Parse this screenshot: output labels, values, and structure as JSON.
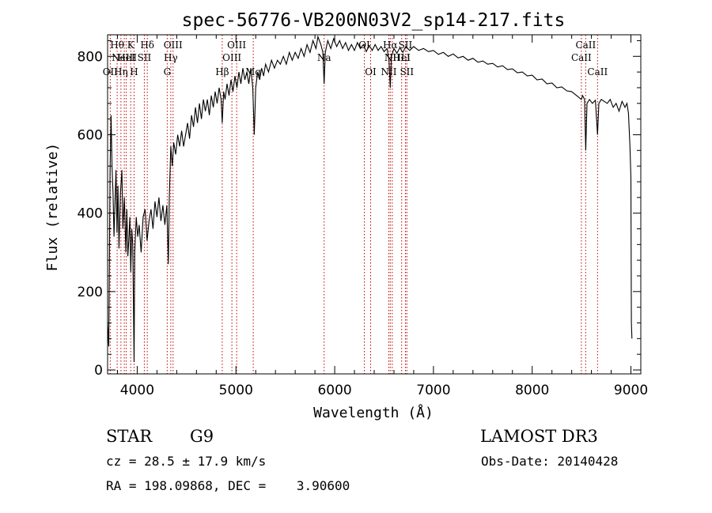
{
  "chart_data": {
    "type": "line",
    "title": "spec-56776-VB200N03V2_sp14-217.fits",
    "xlabel": "Wavelength (Å)",
    "ylabel": "Flux (relative)",
    "xlim": [
      3700,
      9100
    ],
    "ylim": [
      -10,
      855
    ],
    "xticks": [
      4000,
      5000,
      6000,
      7000,
      8000,
      9000
    ],
    "yticks": [
      0,
      200,
      400,
      600,
      800
    ],
    "grid": false,
    "spectrum_points": [
      [
        3700,
        120
      ],
      [
        3712,
        60
      ],
      [
        3725,
        500
      ],
      [
        3735,
        650
      ],
      [
        3745,
        520
      ],
      [
        3755,
        450
      ],
      [
        3765,
        340
      ],
      [
        3775,
        430
      ],
      [
        3785,
        510
      ],
      [
        3795,
        350
      ],
      [
        3805,
        470
      ],
      [
        3815,
        310
      ],
      [
        3830,
        450
      ],
      [
        3845,
        510
      ],
      [
        3855,
        360
      ],
      [
        3870,
        440
      ],
      [
        3885,
        300
      ],
      [
        3895,
        410
      ],
      [
        3905,
        290
      ],
      [
        3915,
        330
      ],
      [
        3925,
        390
      ],
      [
        3935,
        250
      ],
      [
        3945,
        360
      ],
      [
        3955,
        320
      ],
      [
        3968,
        20
      ],
      [
        3975,
        300
      ],
      [
        3990,
        390
      ],
      [
        4005,
        340
      ],
      [
        4020,
        370
      ],
      [
        4040,
        300
      ],
      [
        4060,
        390
      ],
      [
        4080,
        410
      ],
      [
        4100,
        330
      ],
      [
        4120,
        380
      ],
      [
        4140,
        410
      ],
      [
        4160,
        360
      ],
      [
        4180,
        430
      ],
      [
        4200,
        390
      ],
      [
        4220,
        440
      ],
      [
        4240,
        380
      ],
      [
        4260,
        420
      ],
      [
        4280,
        370
      ],
      [
        4300,
        420
      ],
      [
        4315,
        270
      ],
      [
        4325,
        440
      ],
      [
        4340,
        570
      ],
      [
        4355,
        520
      ],
      [
        4370,
        580
      ],
      [
        4390,
        550
      ],
      [
        4410,
        600
      ],
      [
        4430,
        570
      ],
      [
        4450,
        610
      ],
      [
        4470,
        570
      ],
      [
        4490,
        600
      ],
      [
        4510,
        630
      ],
      [
        4530,
        590
      ],
      [
        4550,
        650
      ],
      [
        4570,
        620
      ],
      [
        4590,
        670
      ],
      [
        4610,
        630
      ],
      [
        4630,
        680
      ],
      [
        4650,
        640
      ],
      [
        4670,
        690
      ],
      [
        4690,
        660
      ],
      [
        4710,
        690
      ],
      [
        4730,
        650
      ],
      [
        4750,
        700
      ],
      [
        4770,
        670
      ],
      [
        4790,
        710
      ],
      [
        4810,
        680
      ],
      [
        4830,
        720
      ],
      [
        4850,
        690
      ],
      [
        4861,
        630
      ],
      [
        4875,
        710
      ],
      [
        4890,
        690
      ],
      [
        4910,
        730
      ],
      [
        4930,
        700
      ],
      [
        4950,
        740
      ],
      [
        4970,
        710
      ],
      [
        4990,
        750
      ],
      [
        5010,
        720
      ],
      [
        5030,
        760
      ],
      [
        5050,
        730
      ],
      [
        5070,
        770
      ],
      [
        5090,
        740
      ],
      [
        5110,
        760
      ],
      [
        5130,
        730
      ],
      [
        5150,
        770
      ],
      [
        5170,
        720
      ],
      [
        5185,
        600
      ],
      [
        5200,
        720
      ],
      [
        5220,
        760
      ],
      [
        5240,
        740
      ],
      [
        5260,
        770
      ],
      [
        5280,
        750
      ],
      [
        5300,
        780
      ],
      [
        5330,
        760
      ],
      [
        5360,
        790
      ],
      [
        5390,
        770
      ],
      [
        5420,
        790
      ],
      [
        5450,
        780
      ],
      [
        5480,
        800
      ],
      [
        5510,
        780
      ],
      [
        5540,
        810
      ],
      [
        5570,
        790
      ],
      [
        5600,
        810
      ],
      [
        5630,
        795
      ],
      [
        5660,
        820
      ],
      [
        5690,
        800
      ],
      [
        5720,
        830
      ],
      [
        5750,
        810
      ],
      [
        5780,
        840
      ],
      [
        5810,
        820
      ],
      [
        5830,
        850
      ],
      [
        5860,
        830
      ],
      [
        5880,
        810
      ],
      [
        5893,
        730
      ],
      [
        5905,
        810
      ],
      [
        5930,
        840
      ],
      [
        5960,
        820
      ],
      [
        5990,
        845
      ],
      [
        6020,
        825
      ],
      [
        6050,
        840
      ],
      [
        6080,
        820
      ],
      [
        6110,
        835
      ],
      [
        6140,
        815
      ],
      [
        6170,
        830
      ],
      [
        6200,
        815
      ],
      [
        6230,
        835
      ],
      [
        6260,
        820
      ],
      [
        6290,
        830
      ],
      [
        6320,
        812
      ],
      [
        6350,
        828
      ],
      [
        6380,
        815
      ],
      [
        6410,
        830
      ],
      [
        6440,
        815
      ],
      [
        6470,
        825
      ],
      [
        6500,
        812
      ],
      [
        6530,
        820
      ],
      [
        6550,
        790
      ],
      [
        6563,
        720
      ],
      [
        6575,
        800
      ],
      [
        6600,
        820
      ],
      [
        6630,
        808
      ],
      [
        6660,
        822
      ],
      [
        6690,
        810
      ],
      [
        6720,
        825
      ],
      [
        6760,
        815
      ],
      [
        6800,
        825
      ],
      [
        6850,
        815
      ],
      [
        6900,
        820
      ],
      [
        6950,
        812
      ],
      [
        7000,
        815
      ],
      [
        7050,
        805
      ],
      [
        7100,
        810
      ],
      [
        7150,
        800
      ],
      [
        7200,
        806
      ],
      [
        7250,
        796
      ],
      [
        7300,
        800
      ],
      [
        7350,
        790
      ],
      [
        7400,
        795
      ],
      [
        7450,
        785
      ],
      [
        7500,
        788
      ],
      [
        7550,
        780
      ],
      [
        7600,
        782
      ],
      [
        7650,
        773
      ],
      [
        7700,
        776
      ],
      [
        7750,
        766
      ],
      [
        7800,
        768
      ],
      [
        7850,
        758
      ],
      [
        7900,
        760
      ],
      [
        7950,
        750
      ],
      [
        8000,
        752
      ],
      [
        8050,
        740
      ],
      [
        8100,
        742
      ],
      [
        8150,
        730
      ],
      [
        8200,
        732
      ],
      [
        8250,
        720
      ],
      [
        8300,
        722
      ],
      [
        8350,
        712
      ],
      [
        8400,
        710
      ],
      [
        8450,
        700
      ],
      [
        8498,
        690
      ],
      [
        8510,
        700
      ],
      [
        8530,
        690
      ],
      [
        8542,
        560
      ],
      [
        8555,
        680
      ],
      [
        8580,
        690
      ],
      [
        8610,
        680
      ],
      [
        8640,
        688
      ],
      [
        8662,
        600
      ],
      [
        8675,
        680
      ],
      [
        8700,
        690
      ],
      [
        8730,
        685
      ],
      [
        8760,
        680
      ],
      [
        8790,
        690
      ],
      [
        8820,
        670
      ],
      [
        8850,
        680
      ],
      [
        8880,
        660
      ],
      [
        8910,
        685
      ],
      [
        8940,
        670
      ],
      [
        8960,
        680
      ],
      [
        8975,
        655
      ],
      [
        8990,
        570
      ],
      [
        9000,
        490
      ],
      [
        9005,
        120
      ],
      [
        9010,
        80
      ]
    ],
    "emission_lines": [
      {
        "wavelength": 3727,
        "label": "OII",
        "row": 3
      },
      {
        "wavelength": 3797,
        "label": "Hθ",
        "row": 1
      },
      {
        "wavelength": 3835,
        "label": "Hη",
        "row": 3
      },
      {
        "wavelength": 3869,
        "label": "NeIII",
        "row": 2
      },
      {
        "wavelength": 3889,
        "label": "HeI",
        "row": 2
      },
      {
        "wavelength": 3934,
        "label": "K",
        "row": 1
      },
      {
        "wavelength": 3968,
        "label": "H",
        "row": 3
      },
      {
        "wavelength": 4072,
        "label": "SII",
        "row": 2
      },
      {
        "wavelength": 4102,
        "label": "Hδ",
        "row": 1
      },
      {
        "wavelength": 4304,
        "label": "G",
        "row": 3
      },
      {
        "wavelength": 4340,
        "label": "Hγ",
        "row": 2
      },
      {
        "wavelength": 4363,
        "label": "OIII",
        "row": 1
      },
      {
        "wavelength": 4861,
        "label": "Hβ",
        "row": 3
      },
      {
        "wavelength": 4959,
        "label": "OIII",
        "row": 2
      },
      {
        "wavelength": 5007,
        "label": "OIII",
        "row": 1
      },
      {
        "wavelength": 5175,
        "label": "Mg",
        "row": 3
      },
      {
        "wavelength": 5893,
        "label": "Na",
        "row": 2
      },
      {
        "wavelength": 6300,
        "label": "OI",
        "row": 1
      },
      {
        "wavelength": 6364,
        "label": "OI",
        "row": 3
      },
      {
        "wavelength": 6548,
        "label": "NII",
        "row": 3
      },
      {
        "wavelength": 6563,
        "label": "Hα",
        "row": 1
      },
      {
        "wavelength": 6583,
        "label": "NII",
        "row": 2
      },
      {
        "wavelength": 6678,
        "label": "HeI",
        "row": 2
      },
      {
        "wavelength": 6716,
        "label": "SII",
        "row": 1
      },
      {
        "wavelength": 6717,
        "label": "Li",
        "row": 2
      },
      {
        "wavelength": 6731,
        "label": "SII",
        "row": 3
      },
      {
        "wavelength": 8498,
        "label": "CaII",
        "row": 2
      },
      {
        "wavelength": 8542,
        "label": "CaII",
        "row": 1
      },
      {
        "wavelength": 8662,
        "label": "CaII",
        "row": 3
      }
    ]
  },
  "info": {
    "class_label": "STAR",
    "subclass_label": "G9",
    "survey": "LAMOST DR3",
    "cz_text": "cz = 28.5 ± 17.9 km/s",
    "obs_date_text": "Obs-Date: 20140428",
    "radec_text": "RA = 198.09868, DEC =    3.90600"
  },
  "colors": {
    "spectrum": "#000000",
    "line_marker": "#c00000",
    "axes": "#000000"
  }
}
